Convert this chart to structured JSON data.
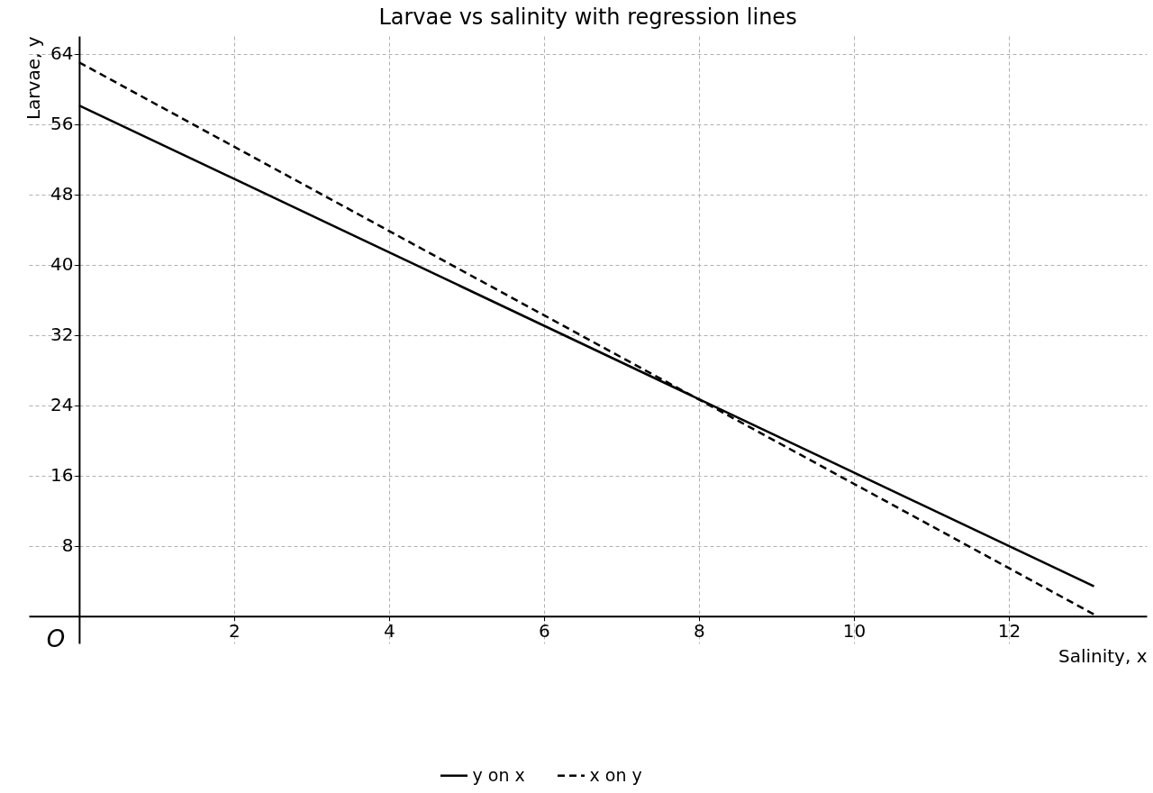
{
  "chart_data": {
    "type": "line",
    "title": "Larvae vs salinity with regression lines",
    "xlabel": "Salinity, x",
    "ylabel": "Larvae, y",
    "x": [
      0,
      13.1
    ],
    "series": [
      {
        "name": "y on x",
        "color": "#000000",
        "line_style": "solid",
        "values": [
          58.1,
          3.4
        ]
      },
      {
        "name": "x on y",
        "color": "#000000",
        "line_style": "dashed",
        "values": [
          63.0,
          0.2
        ]
      }
    ],
    "xlim": [
      -0.65,
      13.78
    ],
    "ylim": [
      -3.1,
      66
    ],
    "xticks": [
      2,
      4,
      6,
      8,
      10,
      12
    ],
    "yticks": [
      8,
      16,
      24,
      32,
      40,
      48,
      56,
      64
    ],
    "grid": true,
    "legend": "bottom",
    "marker": "none",
    "annotations": [
      "O"
    ]
  }
}
